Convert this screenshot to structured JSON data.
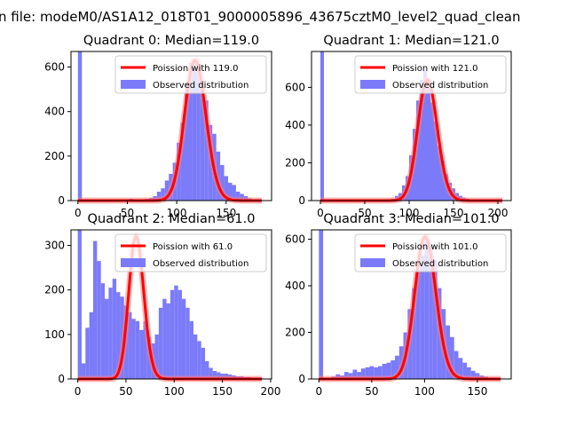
{
  "figure": {
    "suptitle": "n file: modeM0/AS1A12_018T01_9000005896_43675cztM0_level2_quad_clean"
  },
  "colors": {
    "histogram": "#7b7bfa",
    "poisson_line": "#ff0000",
    "poisson_line_faint": "#ff8080",
    "axes": "#000000",
    "background": "#ffffff"
  },
  "chart_data": [
    {
      "type": "bar",
      "title": "Quadrant 0: Median=119.0",
      "legend": {
        "line": "Poission with 119.0",
        "bars": "Observed distribution",
        "placement": "top-right"
      },
      "xlim": [
        -7,
        196
      ],
      "ylim": [
        0,
        670
      ],
      "xticks": [
        0,
        50,
        100,
        150
      ],
      "yticks": [
        0,
        200,
        400,
        600
      ],
      "median": 119,
      "bin_width": 4,
      "bin_starts": [
        0,
        4,
        8,
        12,
        16,
        20,
        24,
        28,
        32,
        36,
        40,
        44,
        48,
        52,
        56,
        60,
        64,
        68,
        72,
        76,
        80,
        84,
        88,
        92,
        96,
        100,
        104,
        108,
        112,
        116,
        120,
        124,
        128,
        132,
        136,
        140,
        144,
        148,
        152,
        156,
        160,
        164,
        168,
        172,
        176,
        180,
        184
      ],
      "counts": [
        670,
        0,
        0,
        0,
        0,
        0,
        0,
        0,
        0,
        0,
        0,
        0,
        0,
        8,
        0,
        5,
        0,
        8,
        12,
        20,
        40,
        55,
        90,
        120,
        170,
        260,
        350,
        530,
        620,
        630,
        600,
        510,
        450,
        340,
        300,
        220,
        160,
        110,
        80,
        70,
        40,
        30,
        20,
        10,
        5,
        3,
        1
      ],
      "poisson_peak": 630
    },
    {
      "type": "bar",
      "title": "Quadrant 1: Median=121.0",
      "legend": {
        "line": "Poission with 121.0",
        "bars": "Observed distribution",
        "placement": "top-right"
      },
      "xlim": [
        -10,
        215
      ],
      "ylim": [
        0,
        790
      ],
      "xticks": [
        0,
        50,
        100,
        150,
        200
      ],
      "yticks": [
        0,
        200,
        400,
        600
      ],
      "median": 121,
      "bin_width": 4,
      "bin_starts": [
        0,
        4,
        8,
        12,
        16,
        20,
        24,
        28,
        32,
        36,
        40,
        44,
        48,
        52,
        56,
        60,
        64,
        68,
        72,
        76,
        80,
        84,
        88,
        92,
        96,
        100,
        104,
        108,
        112,
        116,
        120,
        124,
        128,
        132,
        136,
        140,
        144,
        148,
        152,
        156,
        160,
        164,
        168,
        172,
        176,
        180,
        184,
        188,
        192,
        196,
        200
      ],
      "counts": [
        790,
        0,
        0,
        0,
        0,
        0,
        0,
        0,
        0,
        0,
        0,
        0,
        0,
        0,
        0,
        0,
        0,
        0,
        2,
        5,
        10,
        25,
        40,
        80,
        130,
        240,
        380,
        530,
        640,
        690,
        640,
        520,
        420,
        290,
        210,
        140,
        95,
        65,
        40,
        25,
        15,
        10,
        5,
        3,
        1,
        0,
        0,
        0,
        0,
        0,
        1
      ],
      "poisson_peak": 640
    },
    {
      "type": "bar",
      "title": "Quadrant 2: Median=61.0",
      "legend": {
        "line": "Poission with 61.0",
        "bars": "Observed distribution",
        "placement": "top-right"
      },
      "xlim": [
        -7,
        201
      ],
      "ylim": [
        0,
        335
      ],
      "xticks": [
        0,
        50,
        100,
        150,
        200
      ],
      "yticks": [
        0,
        100,
        200,
        300
      ],
      "median": 61,
      "bin_width": 4,
      "bin_starts": [
        0,
        4,
        8,
        12,
        16,
        20,
        24,
        28,
        32,
        36,
        40,
        44,
        48,
        52,
        56,
        60,
        64,
        68,
        72,
        76,
        80,
        84,
        88,
        92,
        96,
        100,
        104,
        108,
        112,
        116,
        120,
        124,
        128,
        132,
        136,
        140,
        144,
        148,
        152,
        156,
        160,
        164,
        168,
        172,
        176,
        180,
        184,
        188
      ],
      "counts": [
        335,
        35,
        115,
        150,
        310,
        265,
        215,
        180,
        205,
        225,
        195,
        185,
        165,
        150,
        135,
        130,
        110,
        130,
        95,
        80,
        100,
        160,
        180,
        170,
        200,
        210,
        200,
        180,
        160,
        130,
        100,
        85,
        70,
        40,
        25,
        18,
        15,
        12,
        12,
        10,
        8,
        6,
        6,
        4,
        4,
        2,
        2,
        1
      ],
      "poisson_peak": 320
    },
    {
      "type": "bar",
      "title": "Quadrant 3: Median=101.0",
      "legend": {
        "line": "Poission with 101.0",
        "bars": "Observed distribution",
        "placement": "top-right"
      },
      "xlim": [
        -7,
        182
      ],
      "ylim": [
        0,
        640
      ],
      "xticks": [
        0,
        50,
        100,
        150
      ],
      "yticks": [
        0,
        200,
        400,
        600
      ],
      "median": 101,
      "bin_width": 4,
      "bin_starts": [
        0,
        4,
        8,
        12,
        16,
        20,
        24,
        28,
        32,
        36,
        40,
        44,
        48,
        52,
        56,
        60,
        64,
        68,
        72,
        76,
        80,
        84,
        88,
        92,
        96,
        100,
        104,
        108,
        112,
        116,
        120,
        124,
        128,
        132,
        136,
        140,
        144,
        148,
        152,
        156,
        160,
        164,
        168,
        172
      ],
      "counts": [
        640,
        0,
        5,
        10,
        20,
        15,
        30,
        25,
        40,
        30,
        45,
        50,
        55,
        50,
        55,
        65,
        70,
        80,
        100,
        140,
        200,
        300,
        390,
        470,
        530,
        600,
        580,
        510,
        390,
        300,
        230,
        180,
        120,
        90,
        70,
        50,
        35,
        25,
        15,
        10,
        5,
        3,
        2,
        1
      ],
      "poisson_peak": 610
    }
  ]
}
